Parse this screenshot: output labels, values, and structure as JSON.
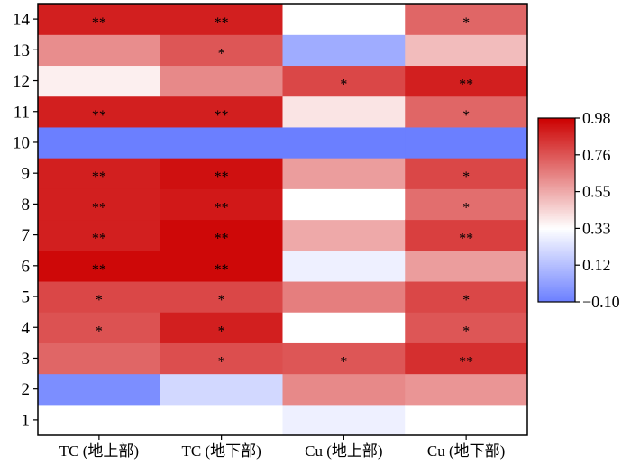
{
  "chart_data": {
    "type": "heatmap",
    "title": "",
    "x_categories": [
      "TC (地上部)",
      "TC (地下部)",
      "Cu (地上部)",
      "Cu (地下部)"
    ],
    "y_categories": [
      "1",
      "2",
      "3",
      "4",
      "5",
      "6",
      "7",
      "8",
      "9",
      "10",
      "11",
      "12",
      "13",
      "14"
    ],
    "values": [
      [
        0.33,
        -0.05,
        0.72,
        0.77,
        0.8,
        0.96,
        0.9,
        0.9,
        0.9,
        -0.1,
        0.9,
        0.37,
        0.62,
        0.9
      ],
      [
        0.33,
        0.2,
        0.78,
        0.9,
        0.8,
        0.96,
        0.96,
        0.92,
        0.94,
        -0.1,
        0.9,
        0.63,
        0.76,
        0.9
      ],
      [
        0.28,
        0.63,
        0.76,
        0.33,
        0.66,
        0.28,
        0.55,
        0.33,
        0.58,
        -0.1,
        0.4,
        0.8,
        0.05,
        0.33
      ],
      [
        0.33,
        0.6,
        0.86,
        0.76,
        0.8,
        0.58,
        0.82,
        0.7,
        0.8,
        -0.1,
        0.72,
        0.9,
        0.5,
        0.72
      ]
    ],
    "significance": [
      [
        "",
        "",
        "",
        "*",
        "*",
        "**",
        "**",
        "**",
        "**",
        "",
        "**",
        "",
        "",
        "**"
      ],
      [
        "",
        "",
        "*",
        "*",
        "*",
        "**",
        "**",
        "**",
        "**",
        "",
        "**",
        "",
        "*",
        "**"
      ],
      [
        "",
        "",
        "*",
        "",
        "",
        "",
        "",
        "",
        "",
        "",
        "",
        "*",
        "",
        ""
      ],
      [
        "",
        "",
        "**",
        "*",
        "*",
        "",
        "**",
        "*",
        "*",
        "",
        "*",
        "**",
        "",
        "*"
      ]
    ],
    "colorbar": {
      "ticks": [
        "0.98",
        "0.76",
        "0.55",
        "0.33",
        "0.12",
        "-0.10"
      ],
      "range": [
        -0.1,
        0.98
      ],
      "colors": {
        "low": "#6b7fff",
        "mid": "#ffffff",
        "high": "#cc0000"
      }
    },
    "xlabel": "",
    "ylabel": ""
  }
}
